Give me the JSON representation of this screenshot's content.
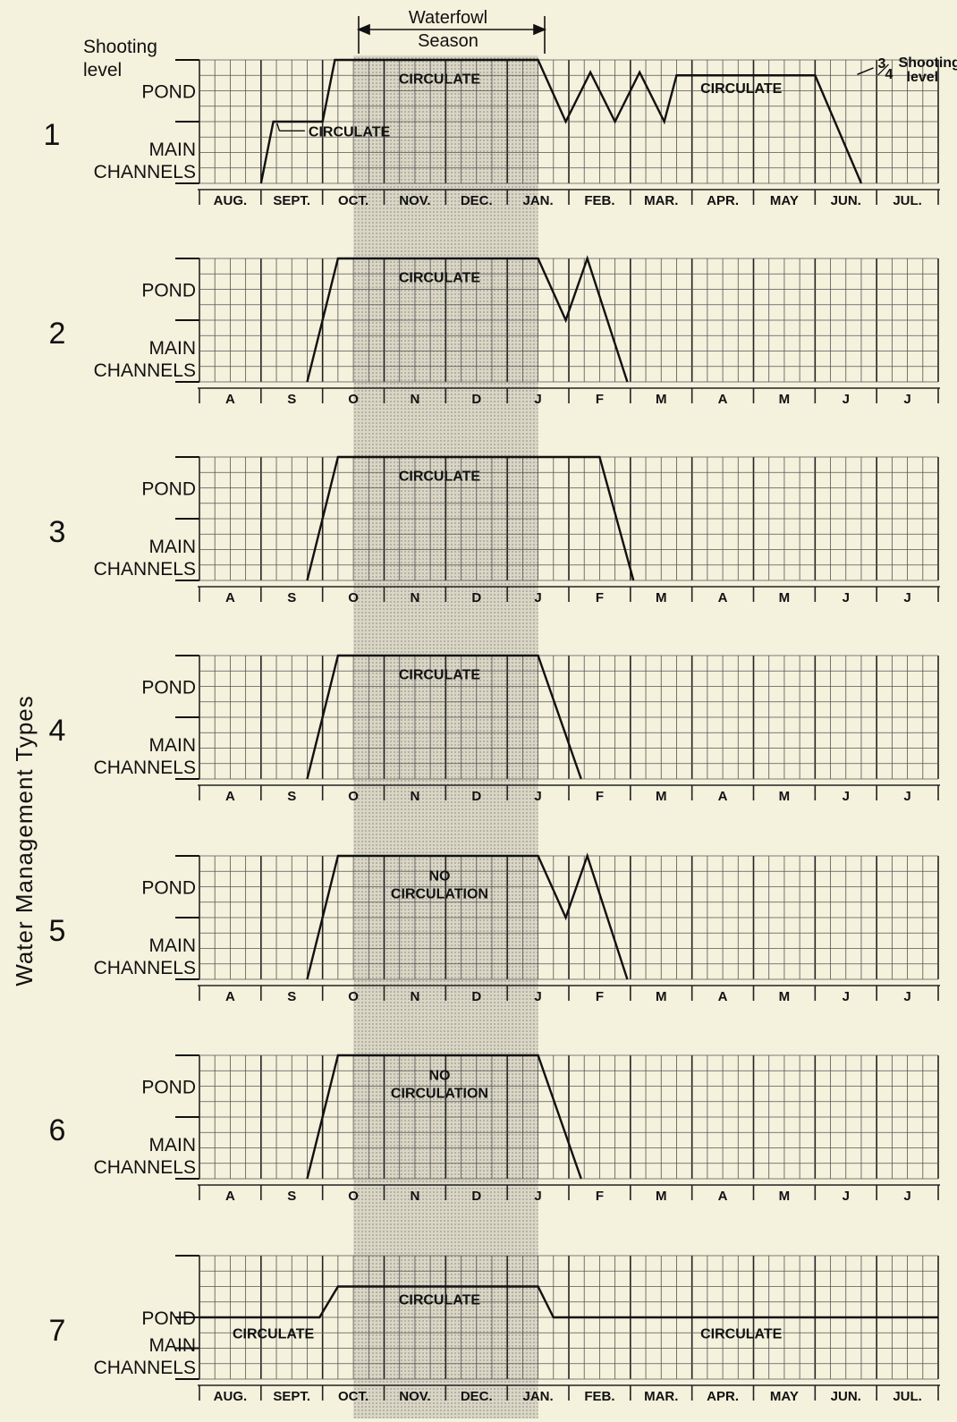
{
  "title": "Waterfowl Season",
  "y_axis_label": "Water Management Types",
  "level_labels": {
    "shooting": "Shooting level",
    "pond": "POND",
    "main": "MAIN",
    "channels": "CHANNELS",
    "three_quarter": "3/4 Shooting level"
  },
  "months_full": [
    "AUG.",
    "SEPT.",
    "OCT.",
    "NOV.",
    "DEC.",
    "JAN.",
    "FEB.",
    "MAR.",
    "APR.",
    "MAY",
    "JUN.",
    "JUL."
  ],
  "months_short": [
    "A",
    "S",
    "O",
    "N",
    "D",
    "J",
    "F",
    "M",
    "A",
    "M",
    "J",
    "J"
  ],
  "colors": {
    "background": "#f4f1dc",
    "season_shade": "#c8c5b6",
    "grid": "#555555",
    "trace": "#111111"
  },
  "chart_data": {
    "type": "line",
    "title": "Waterfowl Season",
    "ylabel": "Water Management Types",
    "x_unit": "months from Aug. 1",
    "xlim": [
      0,
      12
    ],
    "ylim": [
      0,
      4
    ],
    "y_levels": {
      "0": "MAIN CHANNELS",
      "2": "POND",
      "4": "Shooting level"
    },
    "waterfowl_season": [
      2.5,
      5.5
    ],
    "series": [
      {
        "name": "1",
        "points": [
          [
            1.0,
            0
          ],
          [
            1.2,
            2
          ],
          [
            2.0,
            2
          ],
          [
            2.2,
            4
          ],
          [
            5.5,
            4
          ],
          [
            5.95,
            2
          ],
          [
            6.35,
            3.6
          ],
          [
            6.75,
            2
          ],
          [
            7.15,
            3.6
          ],
          [
            7.55,
            2
          ],
          [
            7.75,
            3.5
          ],
          [
            10.0,
            3.5
          ],
          [
            10.75,
            0
          ]
        ],
        "annotations": [
          {
            "text": "CIRCULATE",
            "x": 1.8,
            "y": 1.7
          },
          {
            "text": "CIRCULATE",
            "x": 3.9,
            "y": 3.4
          },
          {
            "text": "CIRCULATE",
            "x": 8.8,
            "y": 3.1
          },
          {
            "text": "3/4 Shooting level",
            "x": 10.7,
            "y": 3.8
          }
        ]
      },
      {
        "name": "2",
        "points": [
          [
            1.75,
            0
          ],
          [
            2.25,
            4
          ],
          [
            5.5,
            4
          ],
          [
            5.95,
            2
          ],
          [
            6.3,
            4
          ],
          [
            6.95,
            0
          ]
        ],
        "annotations": [
          {
            "text": "CIRCULATE",
            "x": 3.9,
            "y": 3.4
          }
        ]
      },
      {
        "name": "3",
        "points": [
          [
            1.75,
            0
          ],
          [
            2.25,
            4
          ],
          [
            6.5,
            4
          ],
          [
            7.05,
            0
          ]
        ],
        "annotations": [
          {
            "text": "CIRCULATE",
            "x": 3.9,
            "y": 3.4
          }
        ]
      },
      {
        "name": "4",
        "points": [
          [
            1.75,
            0
          ],
          [
            2.25,
            4
          ],
          [
            5.5,
            4
          ],
          [
            6.2,
            0
          ]
        ],
        "annotations": [
          {
            "text": "CIRCULATE",
            "x": 3.9,
            "y": 3.4
          }
        ]
      },
      {
        "name": "5",
        "points": [
          [
            1.75,
            0
          ],
          [
            2.25,
            4
          ],
          [
            5.5,
            4
          ],
          [
            5.95,
            2
          ],
          [
            6.3,
            4
          ],
          [
            6.95,
            0
          ]
        ],
        "annotations": [
          {
            "text": "NO CIRCULATION",
            "x": 3.9,
            "y": 3.2
          }
        ]
      },
      {
        "name": "6",
        "points": [
          [
            1.75,
            0
          ],
          [
            2.25,
            4
          ],
          [
            5.5,
            4
          ],
          [
            6.2,
            0
          ]
        ],
        "annotations": [
          {
            "text": "NO CIRCULATION",
            "x": 3.9,
            "y": 3.2
          }
        ]
      },
      {
        "name": "7",
        "points": [
          [
            0,
            2
          ],
          [
            1.95,
            2
          ],
          [
            2.25,
            3
          ],
          [
            5.5,
            3
          ],
          [
            5.75,
            2
          ],
          [
            12,
            2
          ]
        ],
        "annotations": [
          {
            "text": "CIRCULATE",
            "x": 1.2,
            "y": 1.5
          },
          {
            "text": "CIRCULATE",
            "x": 3.9,
            "y": 2.6
          },
          {
            "text": "CIRCULATE",
            "x": 8.8,
            "y": 1.5
          }
        ]
      }
    ]
  }
}
